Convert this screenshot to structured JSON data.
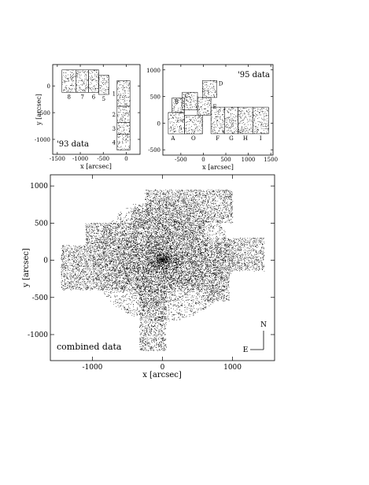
{
  "chart_data": [
    {
      "id": "p93",
      "type": "scatter",
      "annotation": "'93 data",
      "xlabel": "x [arcsec]",
      "ylabel": "y [arcsec]",
      "xlim": [
        -1600,
        300
      ],
      "ylim": [
        -1280,
        400
      ],
      "xticks": [
        -1500,
        -1000,
        -500,
        0
      ],
      "yticks": [
        -1000,
        -500,
        0
      ],
      "fields": [
        {
          "label": "8",
          "x0": -1400,
          "x1": -1090,
          "y0": -120,
          "y1": 300
        },
        {
          "label": "7",
          "x0": -1090,
          "x1": -820,
          "y0": -120,
          "y1": 300
        },
        {
          "label": "6",
          "x0": -820,
          "x1": -600,
          "y0": -120,
          "y1": 300
        },
        {
          "label": "5",
          "x0": -600,
          "x1": -380,
          "y0": -160,
          "y1": 200
        },
        {
          "label": "1",
          "x0": -200,
          "x1": 80,
          "y0": -380,
          "y1": 100
        },
        {
          "label": "2",
          "x0": -200,
          "x1": 80,
          "y0": -680,
          "y1": -380
        },
        {
          "label": "3",
          "x0": -200,
          "x1": 80,
          "y0": -900,
          "y1": -680
        },
        {
          "label": "4",
          "x0": -200,
          "x1": 80,
          "y0": -1200,
          "y1": -900
        }
      ]
    },
    {
      "id": "p95",
      "type": "scatter",
      "annotation": "'95 data",
      "xlabel": "x [arcsec]",
      "ylabel": "",
      "xlim": [
        -900,
        1550
      ],
      "ylim": [
        -600,
        1100
      ],
      "xticks": [
        -500,
        0,
        500,
        1000,
        1500
      ],
      "yticks": [
        -500,
        0,
        500,
        1000
      ],
      "fields": [
        {
          "label": "A",
          "x0": -780,
          "x1": -420,
          "y0": -200,
          "y1": 200
        },
        {
          "label": "B",
          "x0": -700,
          "x1": -420,
          "y0": 200,
          "y1": 470
        },
        {
          "label": "C",
          "x0": -470,
          "x1": -130,
          "y0": 250,
          "y1": 580
        },
        {
          "label": "D",
          "x0": -20,
          "x1": 300,
          "y0": 480,
          "y1": 800
        },
        {
          "label": "E",
          "x0": -130,
          "x1": 170,
          "y0": 150,
          "y1": 480
        },
        {
          "label": "O",
          "x0": -420,
          "x1": -20,
          "y0": -200,
          "y1": 150
        },
        {
          "label": "F",
          "x0": 170,
          "x1": 470,
          "y0": -200,
          "y1": 300
        },
        {
          "label": "G",
          "x0": 470,
          "x1": 770,
          "y0": -200,
          "y1": 300
        },
        {
          "label": "H",
          "x0": 770,
          "x1": 1100,
          "y0": -200,
          "y1": 300
        },
        {
          "label": "I",
          "x0": 1100,
          "x1": 1450,
          "y0": -200,
          "y1": 300
        }
      ]
    },
    {
      "id": "combined",
      "type": "scatter",
      "annotation": "combined data",
      "xlabel": "x [arcsec]",
      "ylabel": "y [arcsec]",
      "xlim": [
        -1600,
        1600
      ],
      "ylim": [
        -1350,
        1150
      ],
      "xticks": [
        -1000,
        0,
        1000
      ],
      "yticks": [
        -1000,
        -500,
        0,
        500,
        1000
      ],
      "compass": {
        "north": "N",
        "east": "E"
      },
      "regions": [
        {
          "x0": -1450,
          "x1": -400,
          "y0": -400,
          "y1": 200
        },
        {
          "x0": -1100,
          "x1": -400,
          "y0": 200,
          "y1": 500
        },
        {
          "x0": -400,
          "x1": 600,
          "y0": -400,
          "y1": 500
        },
        {
          "x0": -250,
          "x1": 1000,
          "y0": 500,
          "y1": 950
        },
        {
          "x0": -450,
          "x1": -200,
          "y0": 500,
          "y1": 700
        },
        {
          "x0": 600,
          "x1": 1450,
          "y0": -150,
          "y1": 300
        },
        {
          "x0": 600,
          "x1": 950,
          "y0": -550,
          "y1": -150
        },
        {
          "x0": -330,
          "x1": 50,
          "y0": -1220,
          "y1": -400
        }
      ],
      "circle": {
        "cx": 0,
        "cy": 0,
        "r": 560
      }
    }
  ]
}
